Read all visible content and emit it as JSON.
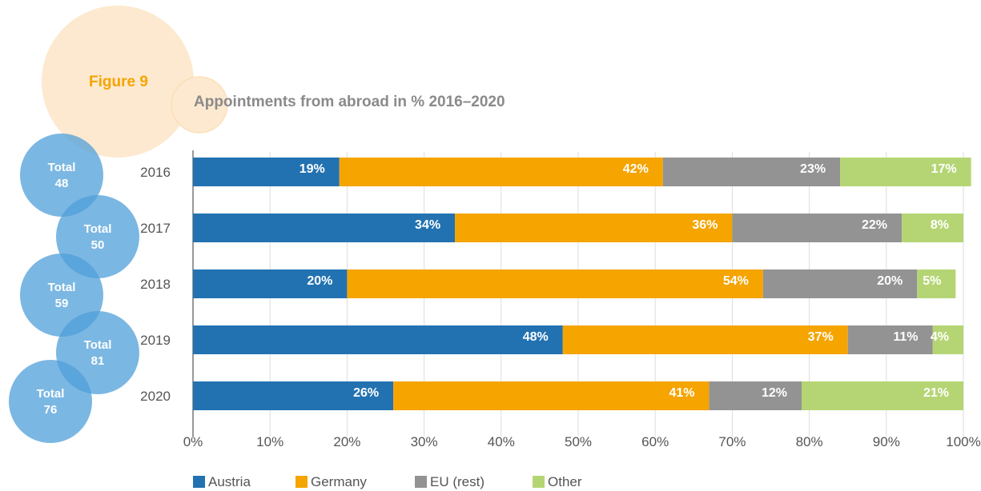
{
  "figure_label": "Figure 9",
  "title": "Appointments from abroad in % 2016–2020",
  "colors": {
    "Austria": "#2272b1",
    "Germany": "#f5a400",
    "EU (rest)": "#939393",
    "Other": "#b5d574",
    "figure_circle": "#fde9cf",
    "figure_label": "#f5a400",
    "title": "#8a8a8a",
    "total_circle": "#4f9fd9",
    "gridline": "#dddddd",
    "axis_text": "#555555"
  },
  "totals": [
    {
      "label": "Total",
      "value": "48"
    },
    {
      "label": "Total",
      "value": "50"
    },
    {
      "label": "Total",
      "value": "59"
    },
    {
      "label": "Total",
      "value": "81"
    },
    {
      "label": "Total",
      "value": "76"
    }
  ],
  "chart_data": {
    "type": "bar",
    "orientation": "horizontal",
    "stacked": true,
    "categories": [
      "2016",
      "2017",
      "2018",
      "2019",
      "2020"
    ],
    "series": [
      {
        "name": "Austria",
        "values": [
          19,
          34,
          20,
          48,
          26
        ],
        "labels": [
          "19%",
          "34%",
          "20%",
          "48%",
          "26%"
        ]
      },
      {
        "name": "Germany",
        "values": [
          42,
          36,
          54,
          37,
          41
        ],
        "labels": [
          "42%",
          "36%",
          "54%",
          "37%",
          "41%"
        ]
      },
      {
        "name": "EU (rest)",
        "values": [
          23,
          22,
          20,
          11,
          12
        ],
        "labels": [
          "23%",
          "22%",
          "20%",
          "11%",
          "12%"
        ]
      },
      {
        "name": "Other",
        "values": [
          17,
          8,
          5,
          4,
          21
        ],
        "labels": [
          "17%",
          "8%",
          "5%",
          "4%",
          "21%"
        ]
      }
    ],
    "xlim": [
      0,
      100
    ],
    "xticks": [
      "0%",
      "10%",
      "20%",
      "30%",
      "40%",
      "50%",
      "60%",
      "70%",
      "80%",
      "90%",
      "100%"
    ],
    "grid": true,
    "legend_position": "bottom-left"
  }
}
